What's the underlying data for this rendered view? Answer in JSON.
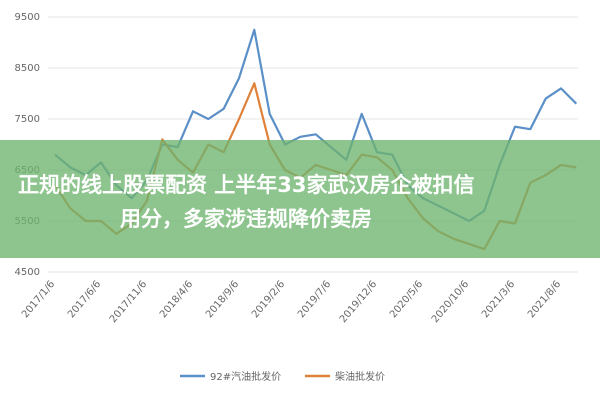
{
  "chart_data": {
    "type": "line",
    "categories": [
      "2017/1/6",
      null,
      null,
      "2017/6/6",
      null,
      null,
      "2017/11/6",
      null,
      null,
      "2018/4/6",
      null,
      null,
      "2018/9/6",
      null,
      null,
      "2019/2/6",
      null,
      null,
      "2019/7/6",
      null,
      null,
      "2019/12/6",
      null,
      null,
      "2020/5/6",
      null,
      null,
      "2020/10/6",
      null,
      null,
      "2021/3/6",
      null,
      null,
      "2021/8/6",
      null
    ],
    "series": [
      {
        "name": "92#汽油批发价",
        "color": "#5b8fc7",
        "values": [
          6800,
          6550,
          6400,
          6650,
          6200,
          5950,
          6300,
          7000,
          6950,
          7650,
          7500,
          7700,
          8300,
          9250,
          7600,
          7000,
          7150,
          7200,
          6950,
          6700,
          7600,
          6850,
          6800,
          6200,
          5950,
          5800,
          5650,
          5500,
          5700,
          6600,
          7350,
          7300,
          7900,
          8100,
          7800
        ]
      },
      {
        "name": "柴油批发价",
        "color": "#e0813a",
        "values": [
          6200,
          5750,
          5500,
          5500,
          5250,
          5450,
          5900,
          7100,
          6700,
          6450,
          7000,
          6850,
          7500,
          8200,
          7000,
          6500,
          6350,
          6600,
          6500,
          6400,
          6800,
          6750,
          6500,
          5950,
          5550,
          5300,
          5150,
          5050,
          4950,
          5500,
          5450,
          6250,
          6400,
          6600,
          6550
        ]
      }
    ],
    "ylim": [
      4500,
      9500
    ],
    "yticks": [
      4500,
      5500,
      6500,
      7500,
      8500,
      9500
    ],
    "grid": true
  },
  "banner": {
    "lines": [
      "正规的线上股票配资 上半年33家武汉房企被扣信",
      "用分，多家涉违规降价卖房"
    ]
  }
}
